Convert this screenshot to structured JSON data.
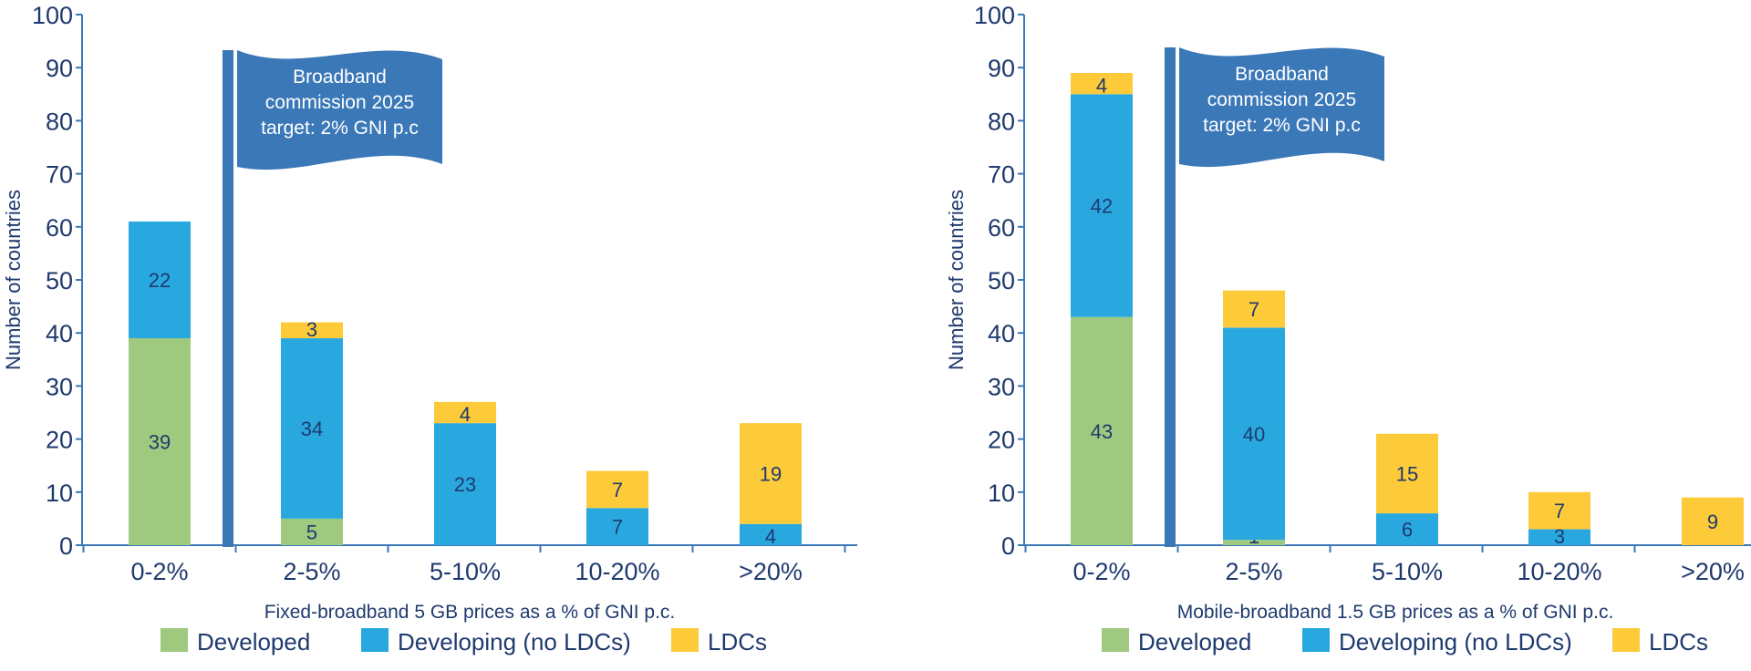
{
  "chart_data": [
    {
      "type": "bar",
      "stacked": true,
      "categories": [
        "0-2%",
        "2-5%",
        "5-10%",
        "10-20%",
        ">20%"
      ],
      "series": [
        {
          "name": "Developed",
          "values": [
            39,
            5,
            0,
            0,
            0
          ]
        },
        {
          "name": "Developing (no LDCs)",
          "values": [
            22,
            34,
            23,
            7,
            4
          ]
        },
        {
          "name": "LDCs",
          "values": [
            0,
            3,
            4,
            7,
            19
          ]
        }
      ],
      "xlabel": "Fixed-broadband 5 GB prices as a % of GNI p.c.",
      "ylabel": "Number of countries",
      "ylim": [
        0,
        100
      ],
      "yticks": [
        0,
        10,
        20,
        30,
        40,
        50,
        60,
        70,
        80,
        90,
        100
      ],
      "annotation": {
        "lines": [
          "Broadband",
          "commission 2025",
          "target: 2% GNI p.c"
        ]
      }
    },
    {
      "type": "bar",
      "stacked": true,
      "categories": [
        "0-2%",
        "2-5%",
        "5-10%",
        "10-20%",
        ">20%"
      ],
      "series": [
        {
          "name": "Developed",
          "values": [
            43,
            1,
            0,
            0,
            0
          ]
        },
        {
          "name": "Developing (no LDCs)",
          "values": [
            42,
            40,
            6,
            3,
            0
          ]
        },
        {
          "name": "LDCs",
          "values": [
            4,
            7,
            15,
            7,
            9
          ]
        }
      ],
      "xlabel": "Mobile-broadband 1.5 GB prices as a % of GNI p.c.",
      "ylabel": "Number of countries",
      "ylim": [
        0,
        100
      ],
      "yticks": [
        0,
        10,
        20,
        30,
        40,
        50,
        60,
        70,
        80,
        90,
        100
      ],
      "annotation": {
        "lines": [
          "Broadband",
          "commission 2025",
          "target: 2% GNI p.c"
        ]
      }
    }
  ],
  "legend": {
    "position": "bottom",
    "items": [
      {
        "label": "Developed",
        "color": "#9fc97e"
      },
      {
        "label": "Developing (no LDCs)",
        "color": "#29a8e0"
      },
      {
        "label": "LDCs",
        "color": "#fdca3a"
      }
    ]
  },
  "colors": {
    "axis": "#3b78b8",
    "text": "#1f3a6e",
    "flag": "#3b78b8"
  }
}
